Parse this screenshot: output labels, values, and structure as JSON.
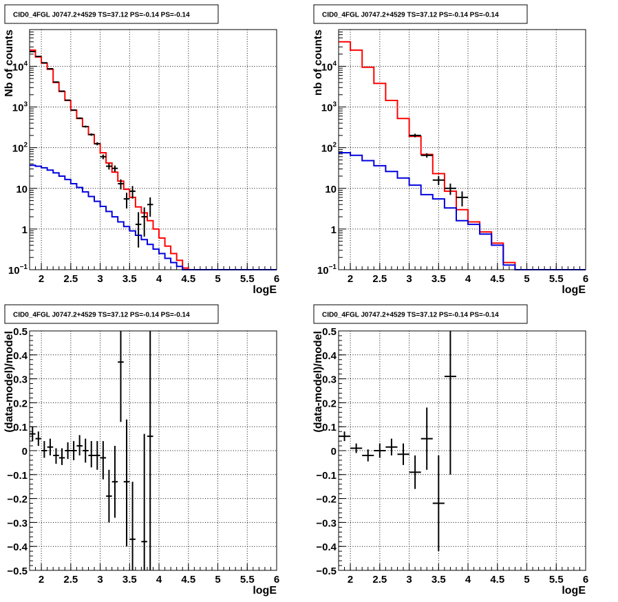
{
  "chart_data": [
    {
      "id": "top-left",
      "type": "line",
      "title": "CID0_4FGL J0747.2+4529 TS=37.12 PS=-0.14 PS=-0.14",
      "xlabel": "logE",
      "ylabel": "Nb of counts",
      "xlim": [
        1.8,
        6.0
      ],
      "ylim": [
        0.1,
        80000
      ],
      "yscale": "log",
      "grid": true,
      "x_ticks": [
        {
          "v": 2,
          "label": "2"
        },
        {
          "v": 2.5,
          "label": "2.5"
        },
        {
          "v": 3,
          "label": "3"
        },
        {
          "v": 3.5,
          "label": "3.5"
        },
        {
          "v": 4,
          "label": "4"
        },
        {
          "v": 4.5,
          "label": "4.5"
        },
        {
          "v": 5,
          "label": "5"
        },
        {
          "v": 5.5,
          "label": "5.5"
        },
        {
          "v": 6,
          "label": "6"
        }
      ],
      "y_ticks": [
        {
          "v": 0.1,
          "base": "10",
          "exp": "−1"
        },
        {
          "v": 1,
          "base": "1",
          "exp": ""
        },
        {
          "v": 10,
          "base": "10",
          "exp": ""
        },
        {
          "v": 100,
          "base": "10",
          "exp": "2"
        },
        {
          "v": 1000,
          "base": "10",
          "exp": "3"
        },
        {
          "v": 10000,
          "base": "10",
          "exp": "4"
        }
      ],
      "series": [
        {
          "kind": "hist",
          "color": "#ff0000",
          "edges": [
            1.8,
            1.9,
            2.0,
            2.1,
            2.2,
            2.3,
            2.4,
            2.5,
            2.6,
            2.7,
            2.8,
            2.9,
            3.0,
            3.1,
            3.2,
            3.3,
            3.4,
            3.5,
            3.6,
            3.7,
            3.8,
            3.9,
            4.0,
            4.1,
            4.2,
            4.3,
            4.4,
            4.5,
            4.6,
            4.7,
            4.8,
            4.9,
            5.0,
            5.1,
            5.2,
            5.3,
            5.4,
            5.5,
            5.6,
            5.7,
            5.8,
            5.9,
            6.0
          ],
          "values": [
            25000,
            17000,
            12000,
            8500,
            4000,
            2400,
            1450,
            830,
            520,
            330,
            210,
            125,
            75,
            42,
            25,
            15,
            9.5,
            6,
            3.5,
            2.5,
            1.6,
            1.0,
            0.6,
            0.38,
            0.25,
            0.17,
            0.11,
            0.1,
            0.1,
            0.1,
            0.1,
            0.1,
            0.1,
            0.1,
            0.1,
            0.1,
            0.1,
            0.1,
            0.1,
            0.1,
            0.1,
            0.1
          ]
        },
        {
          "kind": "hist",
          "color": "#0000dd",
          "edges": [
            1.8,
            1.9,
            2.0,
            2.1,
            2.2,
            2.3,
            2.4,
            2.5,
            2.6,
            2.7,
            2.8,
            2.9,
            3.0,
            3.1,
            3.2,
            3.3,
            3.4,
            3.5,
            3.6,
            3.7,
            3.8,
            3.9,
            4.0,
            4.1,
            4.2,
            4.3,
            4.4,
            4.5,
            4.6,
            4.7,
            4.8,
            4.9,
            5.0,
            5.1,
            5.2,
            5.3,
            5.4,
            5.5,
            5.6,
            5.7,
            5.8,
            5.9,
            6.0
          ],
          "values": [
            37,
            35,
            32,
            28,
            24,
            20,
            16.5,
            13,
            10.5,
            8.2,
            6.3,
            4.8,
            3.6,
            2.7,
            2.0,
            1.5,
            1.15,
            0.9,
            0.7,
            0.55,
            0.42,
            0.32,
            0.25,
            0.19,
            0.15,
            0.12,
            0.1,
            0.1,
            0.1,
            0.1,
            0.1,
            0.1,
            0.1,
            0.1,
            0.1,
            0.1,
            0.1,
            0.1,
            0.1,
            0.1,
            0.1,
            0.1
          ]
        },
        {
          "kind": "points",
          "color": "#000000",
          "points": [
            {
              "x": 1.85,
              "y": 23000,
              "lo": 22800,
              "hi": 23200
            },
            {
              "x": 1.95,
              "y": 17500,
              "lo": 17300,
              "hi": 17700
            },
            {
              "x": 2.05,
              "y": 12200,
              "lo": 12050,
              "hi": 12350
            },
            {
              "x": 2.15,
              "y": 8700,
              "lo": 8600,
              "hi": 8800
            },
            {
              "x": 2.25,
              "y": 4100,
              "lo": 4030,
              "hi": 4170
            },
            {
              "x": 2.35,
              "y": 2450,
              "lo": 2400,
              "hi": 2500
            },
            {
              "x": 2.45,
              "y": 1470,
              "lo": 1430,
              "hi": 1510
            },
            {
              "x": 2.55,
              "y": 840,
              "lo": 810,
              "hi": 870
            },
            {
              "x": 2.65,
              "y": 530,
              "lo": 507,
              "hi": 553
            },
            {
              "x": 2.75,
              "y": 330,
              "lo": 312,
              "hi": 348
            },
            {
              "x": 2.85,
              "y": 210,
              "lo": 196,
              "hi": 224
            },
            {
              "x": 2.95,
              "y": 125,
              "lo": 114,
              "hi": 136
            },
            {
              "x": 3.05,
              "y": 60,
              "lo": 52,
              "hi": 68
            },
            {
              "x": 3.15,
              "y": 35,
              "lo": 29,
              "hi": 41
            },
            {
              "x": 3.25,
              "y": 31,
              "lo": 25.5,
              "hi": 36.5
            },
            {
              "x": 3.35,
              "y": 13,
              "lo": 9.4,
              "hi": 16.6
            },
            {
              "x": 3.45,
              "y": 5.5,
              "lo": 3.2,
              "hi": 7.8
            },
            {
              "x": 3.55,
              "y": 8.5,
              "lo": 5.6,
              "hi": 11.4
            },
            {
              "x": 3.65,
              "y": 1.3,
              "lo": 0.35,
              "hi": 2.6
            },
            {
              "x": 3.75,
              "y": 2.0,
              "lo": 0.65,
              "hi": 3.4
            },
            {
              "x": 3.85,
              "y": 4.0,
              "lo": 2.0,
              "hi": 6.0
            }
          ]
        }
      ]
    },
    {
      "id": "top-right",
      "type": "line",
      "title": "CID0_4FGL J0747.2+4529 TS=37.12 PS=-0.14 PS=-0.14",
      "xlabel": "logE",
      "ylabel": "nb of counts",
      "xlim": [
        1.8,
        6.0
      ],
      "ylim": [
        0.1,
        80000
      ],
      "yscale": "log",
      "grid": true,
      "x_ticks": [
        {
          "v": 2,
          "label": "2"
        },
        {
          "v": 2.5,
          "label": "2.5"
        },
        {
          "v": 3,
          "label": "3"
        },
        {
          "v": 3.5,
          "label": "3.5"
        },
        {
          "v": 4,
          "label": "4"
        },
        {
          "v": 4.5,
          "label": "4.5"
        },
        {
          "v": 5,
          "label": "5"
        },
        {
          "v": 5.5,
          "label": "5.5"
        },
        {
          "v": 6,
          "label": "6"
        }
      ],
      "y_ticks": [
        {
          "v": 0.1,
          "base": "10",
          "exp": "−1"
        },
        {
          "v": 1,
          "base": "1",
          "exp": ""
        },
        {
          "v": 10,
          "base": "10",
          "exp": ""
        },
        {
          "v": 100,
          "base": "10",
          "exp": "2"
        },
        {
          "v": 1000,
          "base": "10",
          "exp": "3"
        },
        {
          "v": 10000,
          "base": "10",
          "exp": "4"
        }
      ],
      "series": [
        {
          "kind": "hist",
          "color": "#ff0000",
          "edges": [
            1.8,
            2.0,
            2.2,
            2.4,
            2.6,
            2.8,
            3.0,
            3.2,
            3.4,
            3.6,
            3.8,
            4.0,
            4.2,
            4.4,
            4.6,
            4.8,
            5.0,
            5.2,
            5.4,
            5.6,
            5.8,
            6.0
          ],
          "values": [
            40000,
            25000,
            9500,
            3800,
            1450,
            520,
            190,
            68,
            23,
            8.5,
            3.0,
            1.5,
            0.85,
            0.45,
            0.15,
            0.1,
            0.1,
            0.1,
            0.1,
            0.1,
            0.1
          ]
        },
        {
          "kind": "hist",
          "color": "#0000dd",
          "edges": [
            1.8,
            2.0,
            2.2,
            2.4,
            2.6,
            2.8,
            3.0,
            3.2,
            3.4,
            3.6,
            3.8,
            4.0,
            4.2,
            4.4,
            4.6,
            4.8,
            5.0,
            5.2,
            5.4,
            5.6,
            5.8,
            6.0
          ],
          "values": [
            75,
            65,
            48,
            36,
            26,
            18,
            12,
            7,
            5.5,
            3.3,
            1.6,
            1.3,
            0.75,
            0.4,
            0.13,
            0.1,
            0.1,
            0.1,
            0.1,
            0.1,
            0.1
          ]
        },
        {
          "kind": "points",
          "color": "#000000",
          "points": [
            {
              "x": 3.1,
              "y": 200,
              "lo": 180,
              "hi": 220
            },
            {
              "x": 3.3,
              "y": 65,
              "lo": 57,
              "hi": 73
            },
            {
              "x": 3.5,
              "y": 16,
              "lo": 12,
              "hi": 20
            },
            {
              "x": 3.7,
              "y": 10,
              "lo": 6.9,
              "hi": 13.1
            },
            {
              "x": 3.9,
              "y": 6.0,
              "lo": 3.6,
              "hi": 8.4
            }
          ]
        }
      ]
    },
    {
      "id": "bottom-left",
      "type": "scatter",
      "title": "CID0_4FGL J0747.2+4529 TS=37.12 PS=-0.14 PS=-0.14",
      "xlabel": "logE",
      "ylabel": "(data-model)/model",
      "xlim": [
        1.8,
        6.0
      ],
      "ylim": [
        -0.5,
        0.5
      ],
      "yscale": "linear",
      "grid": true,
      "x_ticks": [
        {
          "v": 2,
          "label": "2"
        },
        {
          "v": 2.5,
          "label": "2.5"
        },
        {
          "v": 3,
          "label": "3"
        },
        {
          "v": 3.5,
          "label": "3.5"
        },
        {
          "v": 4,
          "label": "4"
        },
        {
          "v": 4.5,
          "label": "4.5"
        },
        {
          "v": 5,
          "label": "5"
        },
        {
          "v": 5.5,
          "label": "5.5"
        },
        {
          "v": 6,
          "label": "6"
        }
      ],
      "y_ticks": [
        {
          "v": -0.5,
          "base": "−0.5",
          "exp": ""
        },
        {
          "v": -0.4,
          "base": "−0.4",
          "exp": ""
        },
        {
          "v": -0.3,
          "base": "−0.3",
          "exp": ""
        },
        {
          "v": -0.2,
          "base": "−0.2",
          "exp": ""
        },
        {
          "v": -0.1,
          "base": "−0.1",
          "exp": ""
        },
        {
          "v": 0,
          "base": "0",
          "exp": ""
        },
        {
          "v": 0.1,
          "base": "0.1",
          "exp": ""
        },
        {
          "v": 0.2,
          "base": "0.2",
          "exp": ""
        },
        {
          "v": 0.3,
          "base": "0.3",
          "exp": ""
        },
        {
          "v": 0.4,
          "base": "0.4",
          "exp": ""
        },
        {
          "v": 0.5,
          "base": "0.5",
          "exp": ""
        }
      ],
      "series": [
        {
          "kind": "points",
          "color": "#000000",
          "points": [
            {
              "x": 1.85,
              "y": 0.07,
              "lo": 0.04,
              "hi": 0.1
            },
            {
              "x": 1.95,
              "y": 0.05,
              "lo": 0.02,
              "hi": 0.08
            },
            {
              "x": 2.05,
              "y": 0.0,
              "lo": -0.03,
              "hi": 0.04
            },
            {
              "x": 2.15,
              "y": 0.015,
              "lo": -0.02,
              "hi": 0.05
            },
            {
              "x": 2.25,
              "y": -0.02,
              "lo": -0.055,
              "hi": 0.01
            },
            {
              "x": 2.35,
              "y": -0.03,
              "lo": -0.06,
              "hi": 0.01
            },
            {
              "x": 2.45,
              "y": 0.0,
              "lo": -0.035,
              "hi": 0.035
            },
            {
              "x": 2.55,
              "y": 0.0,
              "lo": -0.04,
              "hi": 0.04
            },
            {
              "x": 2.65,
              "y": 0.02,
              "lo": -0.02,
              "hi": 0.065
            },
            {
              "x": 2.75,
              "y": 0.0,
              "lo": -0.05,
              "hi": 0.05
            },
            {
              "x": 2.85,
              "y": -0.02,
              "lo": -0.07,
              "hi": 0.04
            },
            {
              "x": 2.95,
              "y": -0.02,
              "lo": -0.08,
              "hi": 0.04
            },
            {
              "x": 3.05,
              "y": -0.03,
              "lo": -0.12,
              "hi": 0.04
            },
            {
              "x": 3.15,
              "y": -0.19,
              "lo": -0.3,
              "hi": -0.08
            },
            {
              "x": 3.25,
              "y": -0.13,
              "lo": -0.28,
              "hi": 0.02
            },
            {
              "x": 3.35,
              "y": 0.37,
              "lo": 0.12,
              "hi": 0.52
            },
            {
              "x": 3.45,
              "y": -0.13,
              "lo": -0.4,
              "hi": 0.13
            },
            {
              "x": 3.55,
              "y": -0.37,
              "lo": -0.52,
              "hi": -0.13
            },
            {
              "x": 3.75,
              "y": -0.38,
              "lo": -0.52,
              "hi": 0.07
            },
            {
              "x": 3.85,
              "y": 0.06,
              "lo": -0.52,
              "hi": 0.52
            }
          ]
        }
      ]
    },
    {
      "id": "bottom-right",
      "type": "scatter",
      "title": "CID0_4FGL J0747.2+4529 TS=37.12 PS=-0.14 PS=-0.14",
      "xlabel": "logE",
      "ylabel": "(data-model)/model",
      "xlim": [
        1.8,
        6.0
      ],
      "ylim": [
        -0.5,
        0.5
      ],
      "yscale": "linear",
      "grid": true,
      "x_ticks": [
        {
          "v": 2,
          "label": "2"
        },
        {
          "v": 2.5,
          "label": "2.5"
        },
        {
          "v": 3,
          "label": "3"
        },
        {
          "v": 3.5,
          "label": "3.5"
        },
        {
          "v": 4,
          "label": "4"
        },
        {
          "v": 4.5,
          "label": "4.5"
        },
        {
          "v": 5,
          "label": "5"
        },
        {
          "v": 5.5,
          "label": "5.5"
        },
        {
          "v": 6,
          "label": "6"
        }
      ],
      "y_ticks": [
        {
          "v": -0.5,
          "base": "−0.5",
          "exp": ""
        },
        {
          "v": -0.4,
          "base": "−0.4",
          "exp": ""
        },
        {
          "v": -0.3,
          "base": "−0.3",
          "exp": ""
        },
        {
          "v": -0.2,
          "base": "−0.2",
          "exp": ""
        },
        {
          "v": -0.1,
          "base": "−0.1",
          "exp": ""
        },
        {
          "v": 0,
          "base": "0",
          "exp": ""
        },
        {
          "v": 0.1,
          "base": "0.1",
          "exp": ""
        },
        {
          "v": 0.2,
          "base": "0.2",
          "exp": ""
        },
        {
          "v": 0.3,
          "base": "0.3",
          "exp": ""
        },
        {
          "v": 0.4,
          "base": "0.4",
          "exp": ""
        },
        {
          "v": 0.5,
          "base": "0.5",
          "exp": ""
        }
      ],
      "series": [
        {
          "kind": "points",
          "color": "#000000",
          "points": [
            {
              "x": 1.9,
              "y": 0.06,
              "lo": 0.04,
              "hi": 0.08
            },
            {
              "x": 2.1,
              "y": 0.01,
              "lo": -0.01,
              "hi": 0.03
            },
            {
              "x": 2.3,
              "y": -0.02,
              "lo": -0.045,
              "hi": 0.005
            },
            {
              "x": 2.5,
              "y": 0.0,
              "lo": -0.03,
              "hi": 0.03
            },
            {
              "x": 2.7,
              "y": 0.015,
              "lo": -0.02,
              "hi": 0.05
            },
            {
              "x": 2.9,
              "y": -0.015,
              "lo": -0.06,
              "hi": 0.03
            },
            {
              "x": 3.1,
              "y": -0.09,
              "lo": -0.16,
              "hi": -0.02
            },
            {
              "x": 3.3,
              "y": 0.05,
              "lo": -0.08,
              "hi": 0.18
            },
            {
              "x": 3.5,
              "y": -0.22,
              "lo": -0.42,
              "hi": -0.02
            },
            {
              "x": 3.7,
              "y": 0.31,
              "lo": -0.1,
              "hi": 0.52
            }
          ]
        }
      ]
    }
  ]
}
